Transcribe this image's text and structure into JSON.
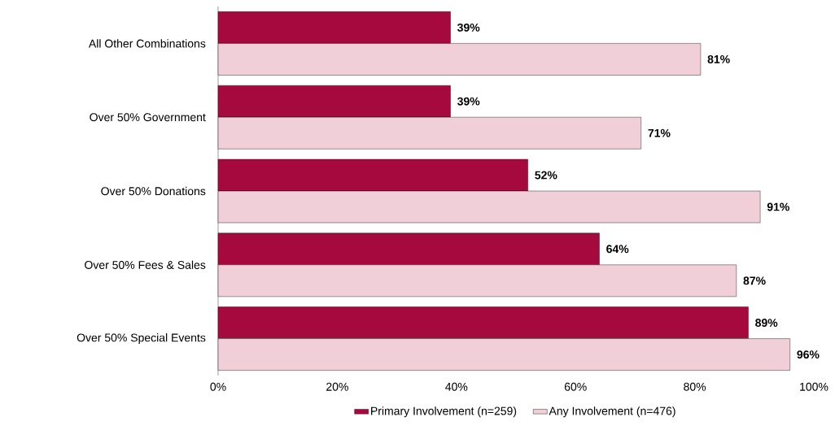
{
  "chart_data": {
    "type": "bar",
    "orientation": "horizontal",
    "categories": [
      "All Other Combinations",
      "Over 50% Government",
      "Over 50% Donations",
      "Over 50% Fees & Sales",
      "Over 50% Special Events"
    ],
    "series": [
      {
        "name": "Primary Involvement (n=259)",
        "color": "#a6093d",
        "values": [
          39,
          39,
          52,
          64,
          89
        ],
        "value_labels": [
          "39%",
          "39%",
          "52%",
          "64%",
          "89%"
        ]
      },
      {
        "name": "Any Involvement (n=476)",
        "color": "#f1cfd8",
        "values": [
          81,
          71,
          91,
          87,
          96
        ],
        "value_labels": [
          "81%",
          "71%",
          "91%",
          "87%",
          "96%"
        ]
      }
    ],
    "xlim": [
      0,
      100
    ],
    "xticks": [
      {
        "value": 0,
        "label": "0%"
      },
      {
        "value": 20,
        "label": "20%"
      },
      {
        "value": 40,
        "label": "40%"
      },
      {
        "value": 60,
        "label": "60%"
      },
      {
        "value": 80,
        "label": "80%"
      },
      {
        "value": 100,
        "label": "100%"
      }
    ],
    "grid": false,
    "legend": "bottom"
  }
}
